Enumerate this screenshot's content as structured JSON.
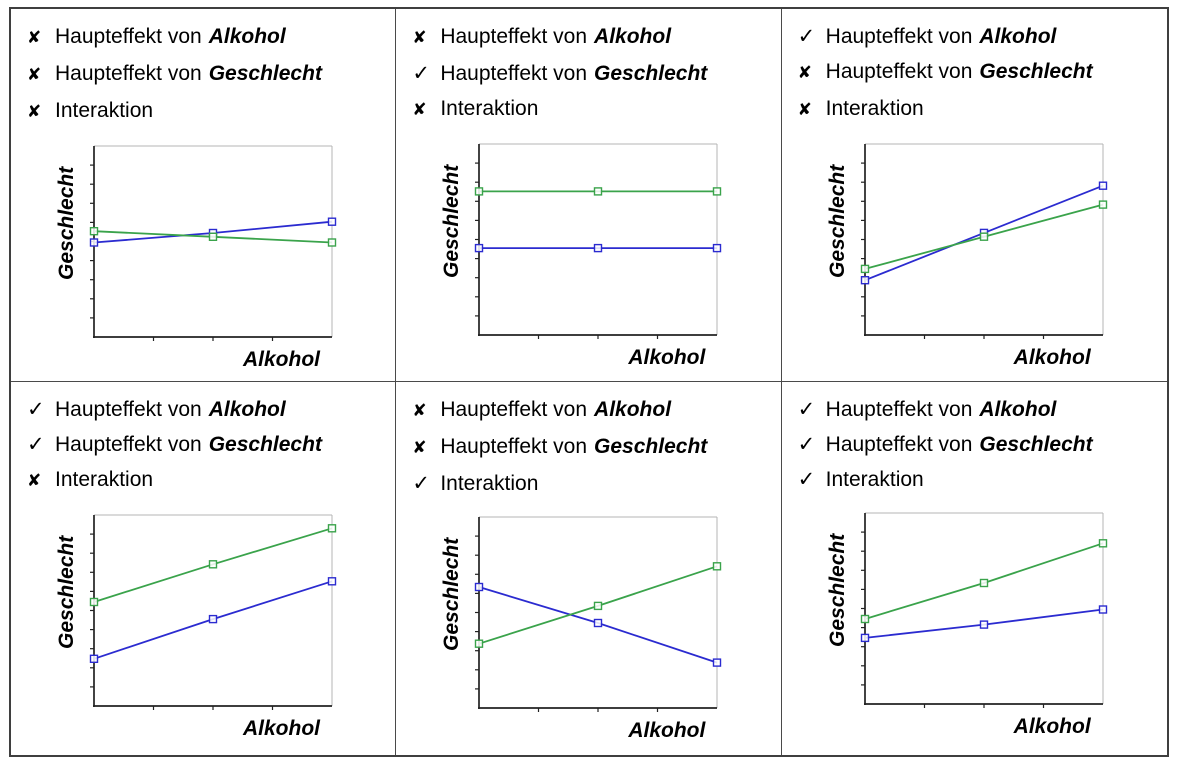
{
  "strings": {
    "haupteffekt": "Haupteffekt von",
    "alkohol": "Alkohol",
    "geschlecht": "Geschlecht",
    "interaktion": "Interaktion",
    "check": "✓",
    "cross": "✘"
  },
  "colors": {
    "blue_line": "#2b2bd0",
    "green_line": "#3aa34b",
    "axis": "#222222",
    "frame_gray": "#b4b4b4",
    "table_border": "#3f3f3f",
    "text": "#000000"
  },
  "panels": [
    {
      "name": "keine-effekte",
      "effects": {
        "alkohol": false,
        "geschlecht": false,
        "interaktion": false
      },
      "marks": {
        "alkohol": "✘",
        "geschlecht": "✘",
        "interaktion": "✘"
      }
    },
    {
      "name": "nur-geschlecht",
      "effects": {
        "alkohol": false,
        "geschlecht": true,
        "interaktion": false
      },
      "marks": {
        "alkohol": "✘",
        "geschlecht": "✓",
        "interaktion": "✘"
      }
    },
    {
      "name": "nur-alkohol",
      "effects": {
        "alkohol": true,
        "geschlecht": false,
        "interaktion": false
      },
      "marks": {
        "alkohol": "✓",
        "geschlecht": "✘",
        "interaktion": "✘"
      }
    },
    {
      "name": "beide-haupteffekte",
      "effects": {
        "alkohol": true,
        "geschlecht": true,
        "interaktion": false
      },
      "marks": {
        "alkohol": "✓",
        "geschlecht": "✓",
        "interaktion": "✘"
      }
    },
    {
      "name": "nur-interaktion",
      "effects": {
        "alkohol": false,
        "geschlecht": false,
        "interaktion": true
      },
      "marks": {
        "alkohol": "✘",
        "geschlecht": "✘",
        "interaktion": "✓"
      }
    },
    {
      "name": "alle-effekte",
      "effects": {
        "alkohol": true,
        "geschlecht": true,
        "interaktion": true
      },
      "marks": {
        "alkohol": "✓",
        "geschlecht": "✓",
        "interaktion": "✓"
      }
    }
  ],
  "chart_data": [
    {
      "type": "line",
      "title": "",
      "xlabel": "Alkohol",
      "ylabel": "Geschlecht",
      "x": [
        1,
        2,
        3
      ],
      "ylim": [
        0,
        1
      ],
      "tick_labels_shown": false,
      "y_tick_intervals": 10,
      "x_tick_intervals": 4,
      "grid": false,
      "legend": "none",
      "series": [
        {
          "name": "blue",
          "color": "#2b2bd0",
          "values": [
            0.5,
            0.55,
            0.61
          ]
        },
        {
          "name": "green",
          "color": "#3aa34b",
          "values": [
            0.56,
            0.53,
            0.5
          ]
        }
      ]
    },
    {
      "type": "line",
      "title": "",
      "xlabel": "Alkohol",
      "ylabel": "Geschlecht",
      "x": [
        1,
        2,
        3
      ],
      "ylim": [
        0,
        1
      ],
      "tick_labels_shown": false,
      "y_tick_intervals": 10,
      "x_tick_intervals": 4,
      "grid": false,
      "legend": "none",
      "series": [
        {
          "name": "blue",
          "color": "#2b2bd0",
          "values": [
            0.46,
            0.46,
            0.46
          ]
        },
        {
          "name": "green",
          "color": "#3aa34b",
          "values": [
            0.76,
            0.76,
            0.76
          ]
        }
      ]
    },
    {
      "type": "line",
      "title": "",
      "xlabel": "Alkohol",
      "ylabel": "Geschlecht",
      "x": [
        1,
        2,
        3
      ],
      "ylim": [
        0,
        1
      ],
      "tick_labels_shown": false,
      "y_tick_intervals": 10,
      "x_tick_intervals": 4,
      "grid": false,
      "legend": "none",
      "series": [
        {
          "name": "blue",
          "color": "#2b2bd0",
          "values": [
            0.29,
            0.54,
            0.79
          ]
        },
        {
          "name": "green",
          "color": "#3aa34b",
          "values": [
            0.35,
            0.52,
            0.69
          ]
        }
      ]
    },
    {
      "type": "line",
      "title": "",
      "xlabel": "Alkohol",
      "ylabel": "Geschlecht",
      "x": [
        1,
        2,
        3
      ],
      "ylim": [
        0,
        1
      ],
      "tick_labels_shown": false,
      "y_tick_intervals": 10,
      "x_tick_intervals": 4,
      "grid": false,
      "legend": "none",
      "series": [
        {
          "name": "blue",
          "color": "#2b2bd0",
          "values": [
            0.25,
            0.46,
            0.66
          ]
        },
        {
          "name": "green",
          "color": "#3aa34b",
          "values": [
            0.55,
            0.75,
            0.94
          ]
        }
      ]
    },
    {
      "type": "line",
      "title": "",
      "xlabel": "Alkohol",
      "ylabel": "Geschlecht",
      "x": [
        1,
        2,
        3
      ],
      "ylim": [
        0,
        1
      ],
      "tick_labels_shown": false,
      "y_tick_intervals": 10,
      "x_tick_intervals": 4,
      "grid": false,
      "legend": "none",
      "series": [
        {
          "name": "blue",
          "color": "#2b2bd0",
          "values": [
            0.64,
            0.45,
            0.24
          ]
        },
        {
          "name": "green",
          "color": "#3aa34b",
          "values": [
            0.34,
            0.54,
            0.75
          ]
        }
      ]
    },
    {
      "type": "line",
      "title": "",
      "xlabel": "Alkohol",
      "ylabel": "Geschlecht",
      "x": [
        1,
        2,
        3
      ],
      "ylim": [
        0,
        1
      ],
      "tick_labels_shown": false,
      "y_tick_intervals": 10,
      "x_tick_intervals": 4,
      "grid": false,
      "legend": "none",
      "series": [
        {
          "name": "blue",
          "color": "#2b2bd0",
          "values": [
            0.35,
            0.42,
            0.5
          ]
        },
        {
          "name": "green",
          "color": "#3aa34b",
          "values": [
            0.45,
            0.64,
            0.85
          ]
        }
      ]
    }
  ]
}
